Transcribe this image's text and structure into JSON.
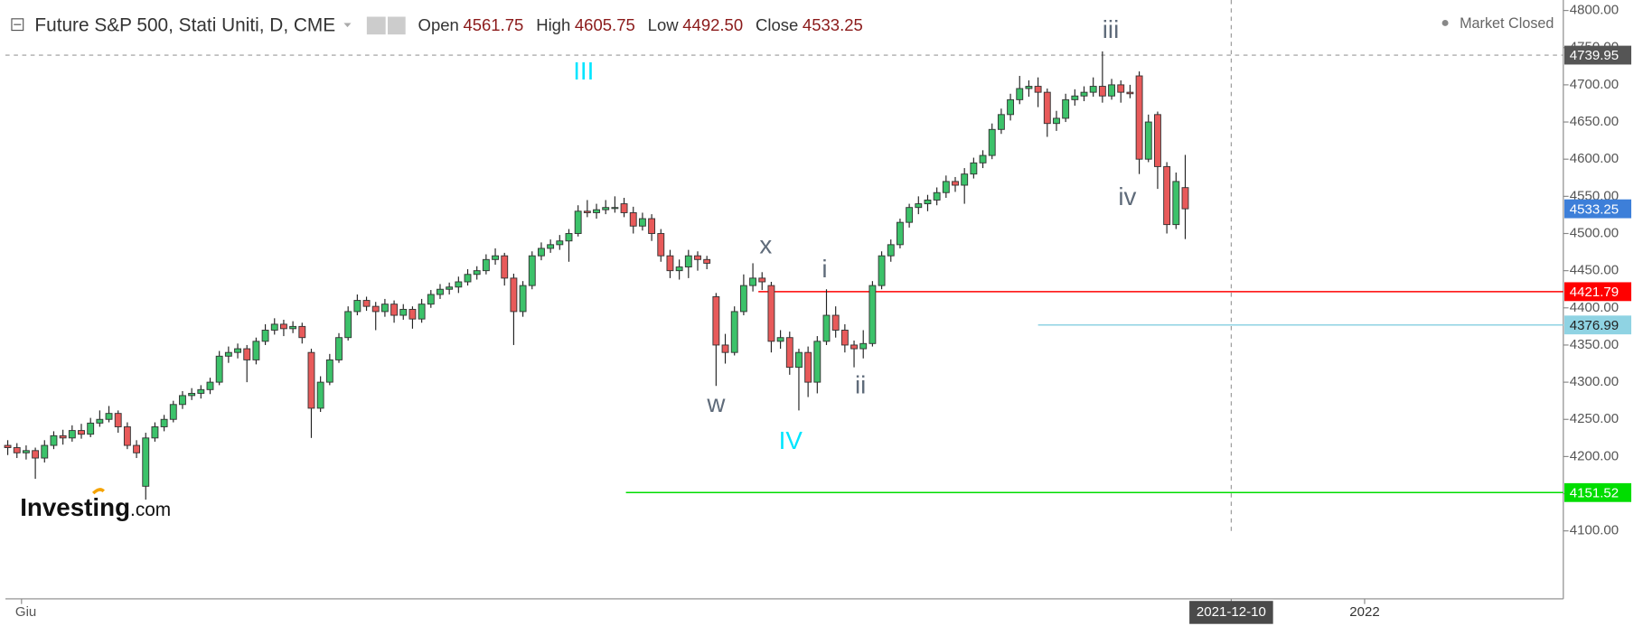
{
  "chart_data": {
    "type": "candlestick",
    "title": "Future S&P 500, Stati Uniti, D, CME",
    "header_values": [
      {
        "label": "Open",
        "text": "4561.75"
      },
      {
        "label": "High",
        "text": "4605.75"
      },
      {
        "label": "Low",
        "text": "4492.50"
      },
      {
        "label": "Close",
        "text": "4533.25"
      }
    ],
    "status": "Market Closed",
    "brand": "Investing",
    "brand_suffix": ".com",
    "up_color": "#3cc26a",
    "down_color": "#e85a5a",
    "xlim": [
      -0.25,
      169.1
    ],
    "ylim": [
      4008.6,
      4814.1
    ],
    "xticks": [
      {
        "value": 1.5,
        "label": "Giu"
      },
      {
        "value": 133,
        "label": "2021-12-10"
      },
      {
        "value": 147.5,
        "label": "2022"
      }
    ],
    "yticks": [
      {
        "value": 4100,
        "label": "4100.00"
      },
      {
        "value": 4150,
        "label": "4150.00"
      },
      {
        "value": 4200,
        "label": "4200.00"
      },
      {
        "value": 4250,
        "label": "4250.00"
      },
      {
        "value": 4300,
        "label": "4300.00"
      },
      {
        "value": 4350,
        "label": "4350.00"
      },
      {
        "value": 4400,
        "label": "4400.00"
      },
      {
        "value": 4450,
        "label": "4450.00"
      },
      {
        "value": 4500,
        "label": "4500.00"
      },
      {
        "value": 4550,
        "label": "4550.00"
      },
      {
        "value": 4600,
        "label": "4600.00"
      },
      {
        "value": 4650,
        "label": "4650.00"
      },
      {
        "value": 4700,
        "label": "4700.00"
      },
      {
        "value": 4750,
        "label": "4750.00"
      },
      {
        "value": 4800,
        "label": "4800.00"
      }
    ],
    "ohlc": [
      [
        4215,
        4222,
        4202,
        4212
      ],
      [
        4212,
        4218,
        4198,
        4205
      ],
      [
        4205,
        4215,
        4196,
        4208
      ],
      [
        4208,
        4212,
        4170,
        4198
      ],
      [
        4198,
        4222,
        4192,
        4215
      ],
      [
        4215,
        4234,
        4210,
        4228
      ],
      [
        4228,
        4236,
        4216,
        4225
      ],
      [
        4225,
        4242,
        4220,
        4235
      ],
      [
        4235,
        4244,
        4224,
        4230
      ],
      [
        4230,
        4252,
        4226,
        4245
      ],
      [
        4245,
        4262,
        4240,
        4250
      ],
      [
        4250,
        4268,
        4246,
        4258
      ],
      [
        4258,
        4262,
        4232,
        4240
      ],
      [
        4240,
        4246,
        4210,
        4215
      ],
      [
        4215,
        4222,
        4198,
        4205
      ],
      [
        4160,
        4232,
        4142,
        4225
      ],
      [
        4225,
        4246,
        4220,
        4240
      ],
      [
        4240,
        4256,
        4234,
        4250
      ],
      [
        4250,
        4275,
        4246,
        4270
      ],
      [
        4270,
        4288,
        4264,
        4282
      ],
      [
        4282,
        4292,
        4276,
        4285
      ],
      [
        4285,
        4296,
        4278,
        4290
      ],
      [
        4290,
        4306,
        4284,
        4300
      ],
      [
        4300,
        4342,
        4296,
        4335
      ],
      [
        4335,
        4348,
        4326,
        4340
      ],
      [
        4340,
        4352,
        4332,
        4345
      ],
      [
        4345,
        4350,
        4300,
        4330
      ],
      [
        4330,
        4360,
        4324,
        4355
      ],
      [
        4355,
        4378,
        4350,
        4370
      ],
      [
        4370,
        4386,
        4364,
        4378
      ],
      [
        4378,
        4384,
        4362,
        4372
      ],
      [
        4372,
        4382,
        4366,
        4375
      ],
      [
        4375,
        4380,
        4352,
        4360
      ],
      [
        4340,
        4345,
        4225,
        4265
      ],
      [
        4265,
        4308,
        4260,
        4300
      ],
      [
        4300,
        4338,
        4296,
        4330
      ],
      [
        4330,
        4366,
        4326,
        4360
      ],
      [
        4360,
        4402,
        4356,
        4395
      ],
      [
        4395,
        4418,
        4390,
        4410
      ],
      [
        4410,
        4415,
        4396,
        4402
      ],
      [
        4402,
        4408,
        4370,
        4395
      ],
      [
        4395,
        4412,
        4388,
        4405
      ],
      [
        4405,
        4410,
        4380,
        4390
      ],
      [
        4390,
        4405,
        4384,
        4398
      ],
      [
        4398,
        4402,
        4372,
        4385
      ],
      [
        4385,
        4412,
        4380,
        4405
      ],
      [
        4405,
        4424,
        4400,
        4418
      ],
      [
        4418,
        4432,
        4412,
        4425
      ],
      [
        4425,
        4434,
        4418,
        4428
      ],
      [
        4428,
        4442,
        4420,
        4435
      ],
      [
        4435,
        4452,
        4430,
        4445
      ],
      [
        4445,
        4456,
        4438,
        4450
      ],
      [
        4450,
        4472,
        4445,
        4465
      ],
      [
        4465,
        4480,
        4458,
        4470
      ],
      [
        4470,
        4474,
        4430,
        4440
      ],
      [
        4440,
        4446,
        4350,
        4395
      ],
      [
        4395,
        4436,
        4388,
        4430
      ],
      [
        4430,
        4476,
        4425,
        4470
      ],
      [
        4470,
        4488,
        4464,
        4480
      ],
      [
        4480,
        4492,
        4474,
        4485
      ],
      [
        4485,
        4498,
        4478,
        4490
      ],
      [
        4490,
        4506,
        4462,
        4500
      ],
      [
        4500,
        4538,
        4496,
        4530
      ],
      [
        4530,
        4545,
        4522,
        4528
      ],
      [
        4528,
        4540,
        4520,
        4532
      ],
      [
        4532,
        4545,
        4526,
        4535
      ],
      [
        4535,
        4550,
        4528,
        4535
      ],
      [
        4540,
        4548,
        4522,
        4528
      ],
      [
        4528,
        4536,
        4500,
        4510
      ],
      [
        4510,
        4528,
        4504,
        4520
      ],
      [
        4520,
        4526,
        4490,
        4500
      ],
      [
        4500,
        4506,
        4462,
        4470
      ],
      [
        4470,
        4478,
        4440,
        4450
      ],
      [
        4450,
        4465,
        4438,
        4455
      ],
      [
        4455,
        4478,
        4440,
        4470
      ],
      [
        4470,
        4476,
        4450,
        4465
      ],
      [
        4465,
        4470,
        4452,
        4460
      ],
      [
        4415,
        4420,
        4295,
        4350
      ],
      [
        4350,
        4365,
        4325,
        4340
      ],
      [
        4340,
        4402,
        4336,
        4395
      ],
      [
        4395,
        4445,
        4390,
        4430
      ],
      [
        4430,
        4460,
        4422,
        4440
      ],
      [
        4440,
        4448,
        4424,
        4435
      ],
      [
        4430,
        4435,
        4340,
        4355
      ],
      [
        4355,
        4370,
        4345,
        4360
      ],
      [
        4360,
        4368,
        4310,
        4320
      ],
      [
        4320,
        4345,
        4262,
        4340
      ],
      [
        4340,
        4348,
        4280,
        4300
      ],
      [
        4300,
        4362,
        4285,
        4355
      ],
      [
        4355,
        4425,
        4350,
        4390
      ],
      [
        4390,
        4402,
        4360,
        4370
      ],
      [
        4370,
        4378,
        4340,
        4350
      ],
      [
        4350,
        4356,
        4320,
        4345
      ],
      [
        4345,
        4370,
        4332,
        4352
      ],
      [
        4352,
        4436,
        4348,
        4430
      ],
      [
        4430,
        4476,
        4425,
        4470
      ],
      [
        4470,
        4492,
        4462,
        4485
      ],
      [
        4485,
        4520,
        4480,
        4515
      ],
      [
        4515,
        4540,
        4508,
        4535
      ],
      [
        4535,
        4550,
        4526,
        4540
      ],
      [
        4540,
        4552,
        4530,
        4545
      ],
      [
        4545,
        4562,
        4538,
        4555
      ],
      [
        4555,
        4578,
        4548,
        4570
      ],
      [
        4570,
        4576,
        4556,
        4565
      ],
      [
        4565,
        4588,
        4540,
        4580
      ],
      [
        4580,
        4602,
        4574,
        4595
      ],
      [
        4595,
        4612,
        4588,
        4605
      ],
      [
        4605,
        4648,
        4600,
        4640
      ],
      [
        4640,
        4668,
        4634,
        4660
      ],
      [
        4660,
        4688,
        4652,
        4680
      ],
      [
        4680,
        4712,
        4674,
        4695
      ],
      [
        4695,
        4706,
        4684,
        4698
      ],
      [
        4698,
        4710,
        4670,
        4690
      ],
      [
        4690,
        4695,
        4630,
        4648
      ],
      [
        4648,
        4665,
        4638,
        4655
      ],
      [
        4655,
        4688,
        4650,
        4680
      ],
      [
        4680,
        4694,
        4672,
        4685
      ],
      [
        4685,
        4698,
        4678,
        4690
      ],
      [
        4690,
        4710,
        4684,
        4698
      ],
      [
        4698,
        4745,
        4676,
        4685
      ],
      [
        4685,
        4708,
        4680,
        4700
      ],
      [
        4700,
        4706,
        4676,
        4690
      ],
      [
        4690,
        4700,
        4682,
        4688
      ],
      [
        4712,
        4718,
        4580,
        4600
      ],
      [
        4600,
        4660,
        4596,
        4650
      ],
      [
        4660,
        4664,
        4560,
        4590
      ],
      [
        4590,
        4596,
        4500,
        4512
      ],
      [
        4512,
        4582,
        4506,
        4570
      ],
      [
        4561.75,
        4605.75,
        4492.5,
        4533.25
      ]
    ],
    "last_price": {
      "value": 4533.25,
      "color": "#3d7fd9"
    },
    "crosshair": {
      "value": 4739.95,
      "x": 133
    },
    "price_lines": [
      {
        "value": 4421.79,
        "color": "#ff0000",
        "x_start": 81.6
      },
      {
        "value": 4376.99,
        "color": "#8fd3e3",
        "x_start": 112
      },
      {
        "value": 4151.52,
        "color": "#00dd00",
        "x_start": 67.2
      }
    ],
    "annotations": [
      {
        "text": "III",
        "x": 62.6,
        "y": 4716,
        "color": "#00e5ff"
      },
      {
        "text": "IV",
        "x": 85.1,
        "y": 4219,
        "color": "#00e5ff"
      },
      {
        "text": "w",
        "x": 77,
        "y": 4269,
        "color": "#5f6b7a"
      },
      {
        "text": "x",
        "x": 82.4,
        "y": 4482,
        "color": "#5f6b7a"
      },
      {
        "text": "i",
        "x": 88.8,
        "y": 4450,
        "color": "#5f6b7a"
      },
      {
        "text": "ii",
        "x": 92.7,
        "y": 4294,
        "color": "#5f6b7a"
      },
      {
        "text": "iii",
        "x": 119.9,
        "y": 4772,
        "color": "#5f6b7a"
      },
      {
        "text": "iv",
        "x": 121.7,
        "y": 4547,
        "color": "#5f6b7a"
      }
    ]
  }
}
